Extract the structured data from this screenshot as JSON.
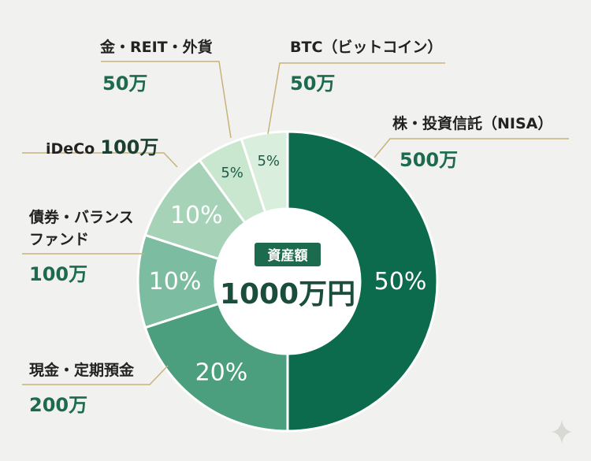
{
  "chart_data": {
    "type": "donut",
    "center": {
      "title": "資産額",
      "total": "1000万円"
    },
    "slices": [
      {
        "name": "株・投資信託（NISA）",
        "amount": "500万",
        "percent": 50,
        "percent_label": "50%",
        "color": "#0d6b4d"
      },
      {
        "name": "現金・定期預金",
        "amount": "200万",
        "percent": 20,
        "percent_label": "20%",
        "color": "#4c9f7e"
      },
      {
        "name": "債券・バランスファンド",
        "amount": "100万",
        "percent": 10,
        "percent_label": "10%",
        "color": "#7cbca0"
      },
      {
        "name": "iDeCo",
        "amount": "100万",
        "percent": 10,
        "percent_label": "10%",
        "color": "#a6d2b8"
      },
      {
        "name": "金・REIT・外貨",
        "amount": "50万",
        "percent": 5,
        "percent_label": "5%",
        "color": "#c9e6cf"
      },
      {
        "name": "BTC（ビットコイン）",
        "amount": "50万",
        "percent": 5,
        "percent_label": "5%",
        "color": "#d9eedc"
      }
    ]
  },
  "labels": {
    "nisa_name": "株・投資信託（NISA）",
    "nisa_amount": "500万",
    "cash_name": "現金・定期預金",
    "cash_amount": "200万",
    "bond_name_line1": "債券・バランス",
    "bond_name_line2": "ファンド",
    "bond_amount": "100万",
    "ideco_name": "iDeCo",
    "ideco_amount": "100万",
    "gold_name": "金・REIT・外貨",
    "gold_amount": "50万",
    "btc_name": "BTC（ビットコイン）",
    "btc_amount": "50万"
  }
}
